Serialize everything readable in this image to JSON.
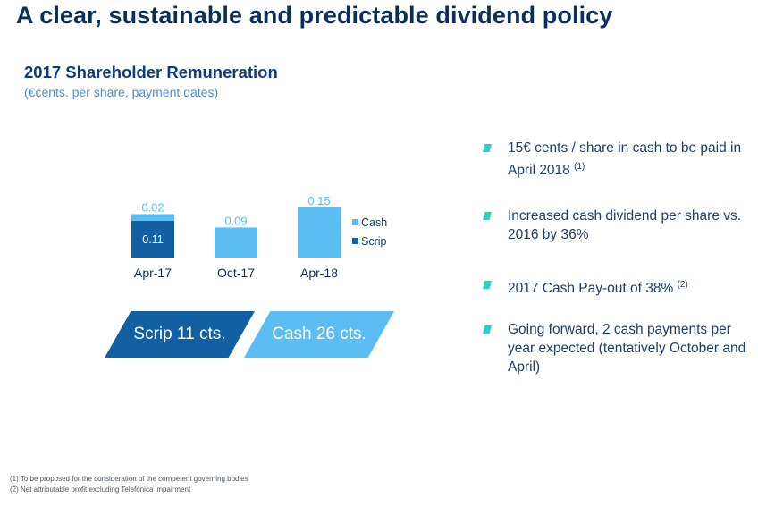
{
  "header": {
    "title": "A clear, sustainable and predictable dividend policy",
    "subtitle": "2017 Shareholder Remuneration",
    "units": "(€cents. per share, payment dates)"
  },
  "chart_data": {
    "type": "bar",
    "stacked": true,
    "categories": [
      "Apr-17",
      "Oct-17",
      "Apr-18"
    ],
    "series": [
      {
        "name": "Scrip",
        "values": [
          0.11,
          0,
          0
        ],
        "labels": [
          "0.11",
          "",
          ""
        ],
        "color": "#135fa3"
      },
      {
        "name": "Cash",
        "values": [
          0.02,
          0.09,
          0.15
        ],
        "labels": [
          "0.02",
          "0.09",
          "0.15"
        ],
        "color": "#5bbdf4"
      }
    ],
    "legend": [
      "Cash",
      "Scrip"
    ],
    "legend_position": "right",
    "ylim": [
      0,
      0.15
    ],
    "grid": false
  },
  "banners": {
    "scrip": "Scrip 11 cts.",
    "cash": "Cash 26 cts."
  },
  "bullets": [
    {
      "text": "15€ cents / share in cash to be paid in April 2018",
      "note": "(1)"
    },
    {
      "text": "Increased cash dividend per share vs. 2016 by 36%",
      "note": ""
    },
    {
      "text": "2017 Cash Pay-out of 38%",
      "note": "(2)"
    },
    {
      "text": "Going forward, 2 cash payments per year expected (tentatively October and April)",
      "note": ""
    }
  ],
  "footnotes": [
    "(1) To be proposed for the consideration of the competent governing bodies",
    "(2) Net attributable profit excluding Telefónica impairment"
  ],
  "colors": {
    "navy": "#0b2f5c",
    "scrip": "#135fa3",
    "cash": "#5bbdf4",
    "bullet": "#2ad0c6"
  }
}
